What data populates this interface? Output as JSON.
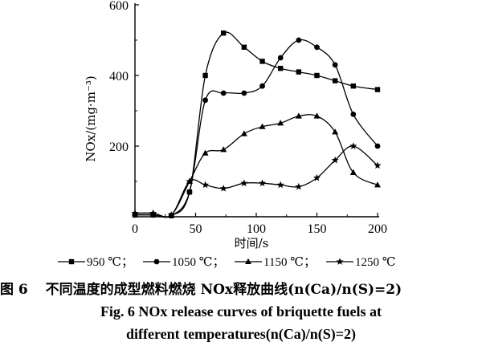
{
  "chart_data": {
    "type": "line",
    "title": "",
    "xlabel": "时间/s",
    "ylabel": "NOx/(mg·m⁻³)",
    "xlim": [
      0,
      200
    ],
    "ylim": [
      0,
      600
    ],
    "xticks": [
      0,
      50,
      100,
      150,
      200
    ],
    "yticks": [
      200,
      400,
      600
    ],
    "grid": false,
    "legend_position": "bottom",
    "series": [
      {
        "name": "950 ℃",
        "marker": "square",
        "x": [
          0,
          15,
          30,
          45,
          58,
          73,
          90,
          105,
          120,
          135,
          150,
          165,
          180,
          200
        ],
        "y": [
          5,
          5,
          3,
          70,
          400,
          520,
          480,
          440,
          420,
          410,
          400,
          385,
          370,
          360
        ]
      },
      {
        "name": "1050 ℃",
        "marker": "circle",
        "x": [
          0,
          15,
          30,
          45,
          58,
          73,
          90,
          105,
          120,
          135,
          150,
          165,
          180,
          200
        ],
        "y": [
          5,
          5,
          3,
          70,
          330,
          350,
          350,
          370,
          450,
          500,
          480,
          430,
          290,
          200
        ]
      },
      {
        "name": "1150 ℃",
        "marker": "triangle",
        "x": [
          0,
          15,
          30,
          45,
          58,
          73,
          90,
          105,
          120,
          135,
          150,
          165,
          180,
          200
        ],
        "y": [
          10,
          10,
          5,
          100,
          180,
          190,
          235,
          255,
          265,
          285,
          285,
          240,
          125,
          90
        ]
      },
      {
        "name": "1250 ℃",
        "marker": "star",
        "x": [
          0,
          15,
          30,
          45,
          58,
          73,
          90,
          105,
          120,
          135,
          150,
          165,
          180,
          200
        ],
        "y": [
          10,
          10,
          5,
          100,
          90,
          80,
          95,
          95,
          90,
          85,
          110,
          160,
          200,
          145
        ]
      }
    ]
  },
  "legend": {
    "items": [
      "950 ℃；",
      "1050 ℃；",
      "1150 ℃；",
      "1250 ℃"
    ]
  },
  "caption": {
    "cn_fig": "图 6",
    "cn_text": "不同温度的成型燃料燃烧 NOx释放曲线(n(Ca)/n(S)=2)",
    "en_line1": "Fig. 6   NOx release curves of briquette fuels at",
    "en_line2": "different temperatures(n(Ca)/n(S)=2)"
  }
}
